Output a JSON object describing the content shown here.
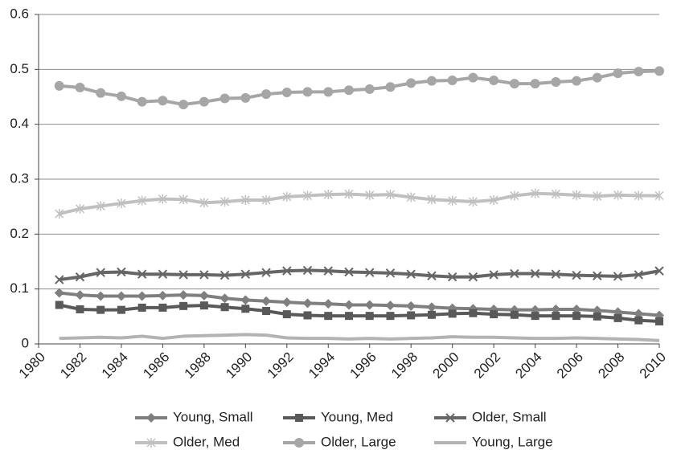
{
  "chart_data": {
    "type": "line",
    "x": [
      1981,
      1982,
      1983,
      1984,
      1985,
      1986,
      1987,
      1988,
      1989,
      1990,
      1991,
      1992,
      1993,
      1994,
      1995,
      1996,
      1997,
      1998,
      1999,
      2000,
      2001,
      2002,
      2003,
      2004,
      2005,
      2006,
      2007,
      2008,
      2009,
      2010
    ],
    "xlim": [
      1980,
      2010
    ],
    "xticks": [
      1980,
      1982,
      1984,
      1986,
      1988,
      1990,
      1992,
      1994,
      1996,
      1998,
      2000,
      2002,
      2004,
      2006,
      2008,
      2010
    ],
    "ylim": [
      0,
      0.6
    ],
    "yticks": [
      0,
      0.1,
      0.2,
      0.3,
      0.4,
      0.5,
      0.6
    ],
    "grid": true,
    "legend": "bottom",
    "series": [
      {
        "name": "Young, Small",
        "color": "#7f7f7f",
        "marker": "diamond",
        "values": [
          0.093,
          0.089,
          0.087,
          0.087,
          0.087,
          0.088,
          0.089,
          0.088,
          0.083,
          0.08,
          0.078,
          0.076,
          0.074,
          0.073,
          0.071,
          0.071,
          0.07,
          0.069,
          0.067,
          0.065,
          0.064,
          0.063,
          0.062,
          0.062,
          0.063,
          0.063,
          0.061,
          0.058,
          0.055,
          0.052
        ]
      },
      {
        "name": "Young, Med",
        "color": "#595959",
        "marker": "square",
        "values": [
          0.071,
          0.063,
          0.062,
          0.062,
          0.066,
          0.066,
          0.069,
          0.07,
          0.067,
          0.064,
          0.06,
          0.054,
          0.052,
          0.051,
          0.051,
          0.051,
          0.051,
          0.052,
          0.053,
          0.055,
          0.056,
          0.054,
          0.053,
          0.051,
          0.051,
          0.051,
          0.05,
          0.047,
          0.043,
          0.041
        ]
      },
      {
        "name": "Older, Small",
        "color": "#666666",
        "marker": "x",
        "values": [
          0.117,
          0.122,
          0.13,
          0.131,
          0.127,
          0.127,
          0.126,
          0.126,
          0.125,
          0.127,
          0.13,
          0.133,
          0.134,
          0.133,
          0.131,
          0.13,
          0.129,
          0.127,
          0.124,
          0.122,
          0.122,
          0.126,
          0.128,
          0.128,
          0.127,
          0.125,
          0.124,
          0.123,
          0.126,
          0.133
        ]
      },
      {
        "name": "Older, Med",
        "color": "#c0c0c0",
        "marker": "star",
        "values": [
          0.237,
          0.246,
          0.251,
          0.256,
          0.261,
          0.264,
          0.263,
          0.257,
          0.259,
          0.262,
          0.262,
          0.268,
          0.27,
          0.272,
          0.273,
          0.271,
          0.272,
          0.267,
          0.263,
          0.261,
          0.259,
          0.262,
          0.27,
          0.274,
          0.273,
          0.271,
          0.269,
          0.271,
          0.27,
          0.27
        ]
      },
      {
        "name": "Older, Large",
        "color": "#a6a6a6",
        "marker": "circle",
        "values": [
          0.47,
          0.467,
          0.457,
          0.451,
          0.441,
          0.443,
          0.436,
          0.441,
          0.447,
          0.448,
          0.455,
          0.458,
          0.459,
          0.459,
          0.462,
          0.464,
          0.468,
          0.475,
          0.479,
          0.48,
          0.485,
          0.48,
          0.474,
          0.474,
          0.477,
          0.479,
          0.485,
          0.493,
          0.496,
          0.497
        ]
      },
      {
        "name": "Young, Large",
        "color": "#b3b3b3",
        "marker": "none",
        "values": [
          0.01,
          0.011,
          0.012,
          0.011,
          0.014,
          0.01,
          0.014,
          0.015,
          0.016,
          0.017,
          0.016,
          0.011,
          0.01,
          0.01,
          0.009,
          0.01,
          0.009,
          0.01,
          0.011,
          0.013,
          0.012,
          0.012,
          0.011,
          0.01,
          0.01,
          0.011,
          0.01,
          0.009,
          0.008,
          0.006
        ]
      }
    ]
  }
}
